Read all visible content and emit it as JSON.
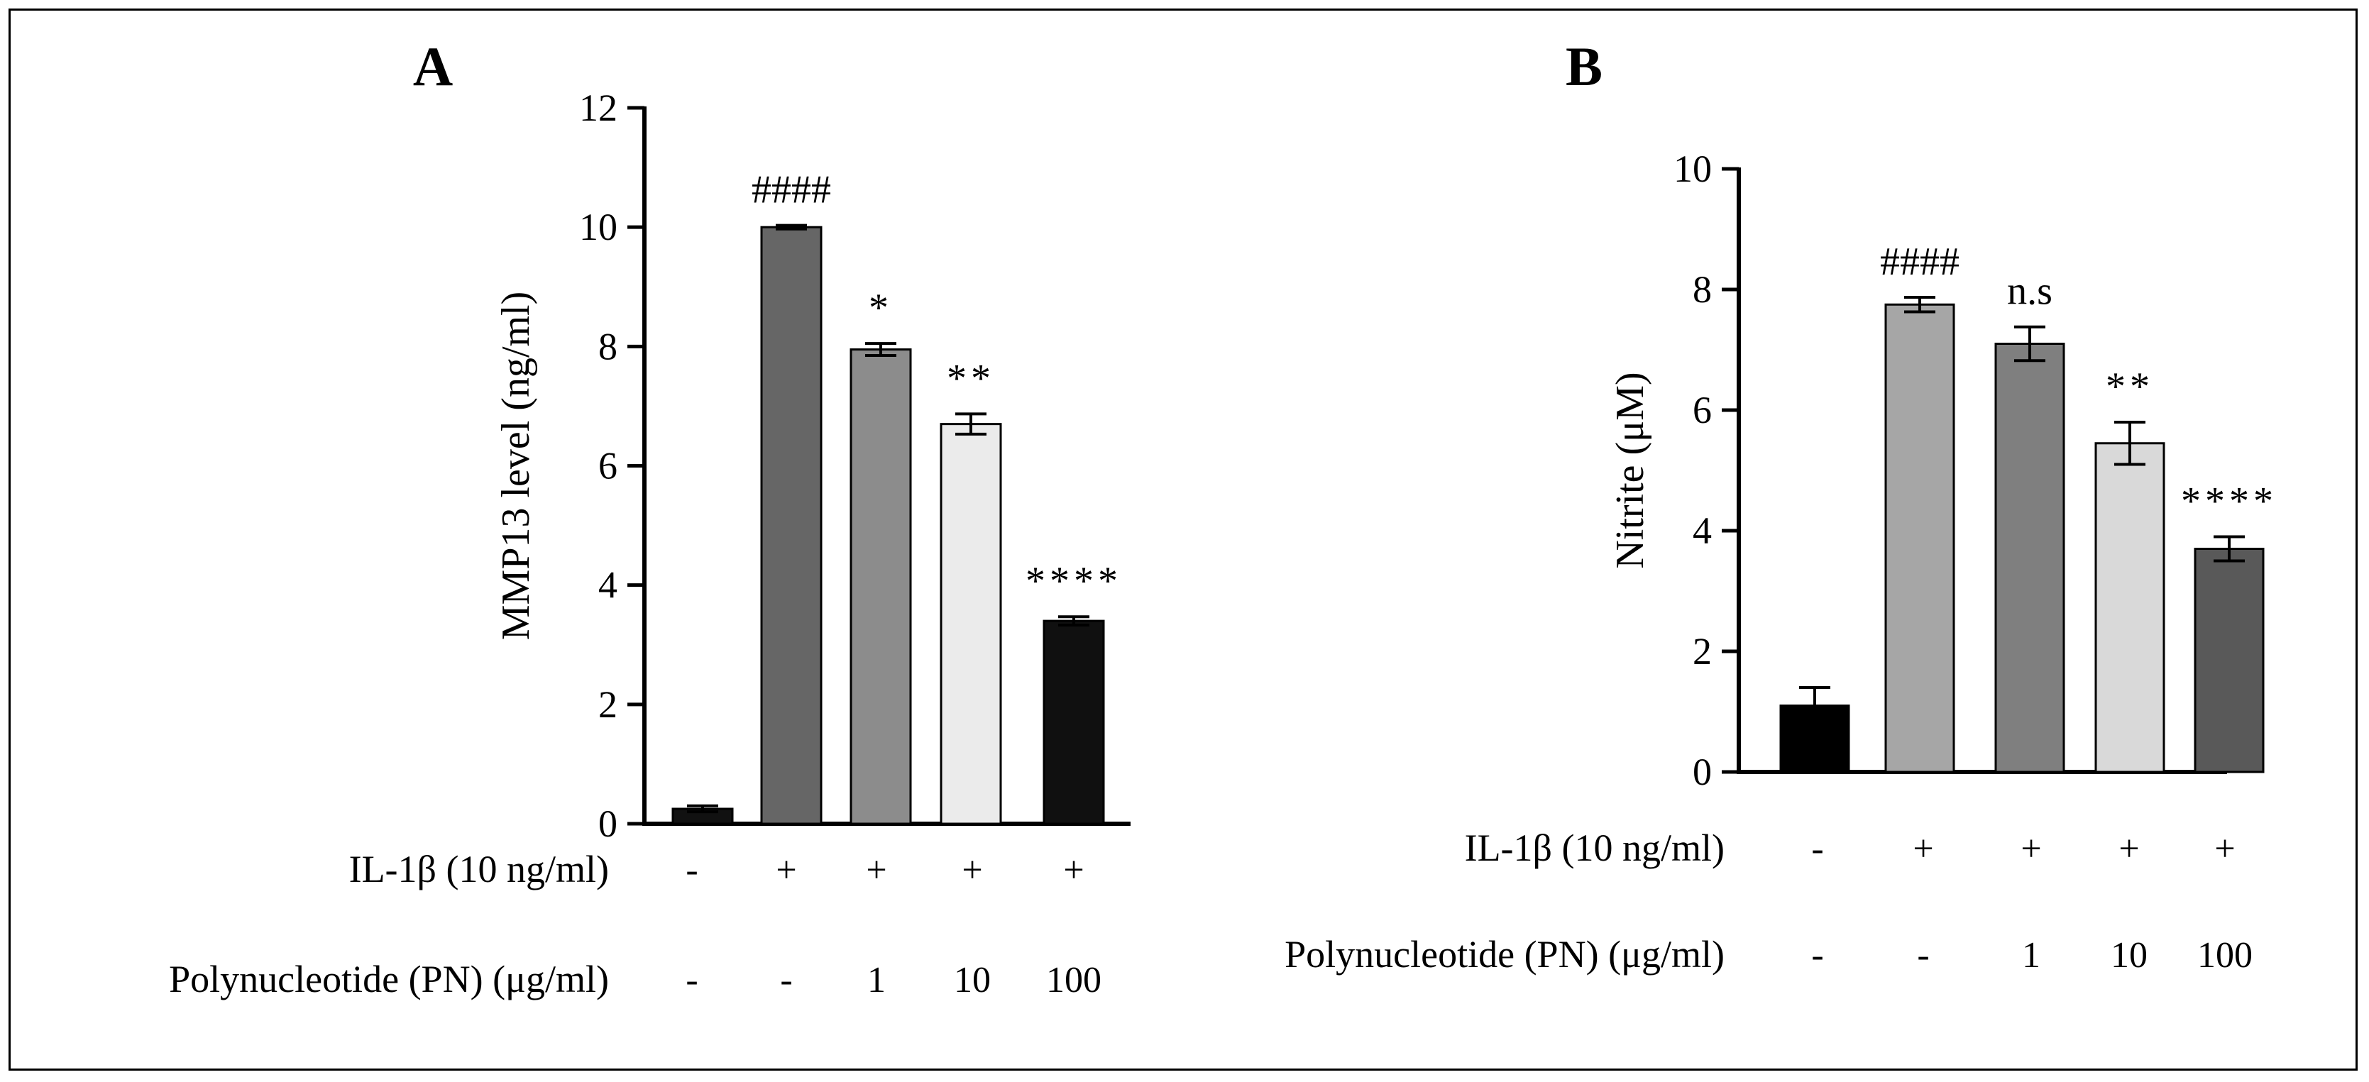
{
  "panels": [
    {
      "letter": "A",
      "chart_data": {
        "type": "bar",
        "title": "A",
        "ylabel": "MMP13 level (ng/ml)",
        "ylim": [
          0,
          12
        ],
        "yticks": [
          0,
          2,
          4,
          6,
          8,
          10,
          12
        ],
        "values": [
          0.25,
          10.0,
          7.95,
          6.7,
          3.4
        ],
        "errors": [
          0.05,
          0.03,
          0.1,
          0.17,
          0.07
        ],
        "colors": [
          "#111111",
          "#666666",
          "#8c8c8c",
          "#ebebeb",
          "#101010"
        ],
        "significance": [
          "",
          "####",
          "*",
          "**",
          "****"
        ],
        "conditions": [
          {
            "label": "IL-1β (10 ng/ml)",
            "values": [
              "-",
              "+",
              "+",
              "+",
              "+"
            ]
          },
          {
            "label": "Polynucleotide (PN) (μg/ml)",
            "values": [
              "-",
              "-",
              "1",
              "10",
              "100"
            ]
          }
        ]
      }
    },
    {
      "letter": "B",
      "chart_data": {
        "type": "bar",
        "title": "B",
        "ylabel": "Nitrite (μM)",
        "ylim": [
          0,
          10
        ],
        "yticks": [
          0,
          2,
          4,
          6,
          8,
          10
        ],
        "values": [
          1.1,
          7.75,
          7.1,
          5.45,
          3.7
        ],
        "errors": [
          0.3,
          0.12,
          0.28,
          0.35,
          0.2
        ],
        "colors": [
          "#000000",
          "#a6a6a6",
          "#7f7f7f",
          "#d9d9d9",
          "#595959"
        ],
        "significance": [
          "",
          "####",
          "n.s",
          "**",
          "****"
        ],
        "conditions": [
          {
            "label": "IL-1β (10 ng/ml)",
            "values": [
              "-",
              "+",
              "+",
              "+",
              "+"
            ]
          },
          {
            "label": "Polynucleotide (PN) (μg/ml)",
            "values": [
              "-",
              "-",
              "1",
              "10",
              "100"
            ]
          }
        ]
      }
    }
  ]
}
